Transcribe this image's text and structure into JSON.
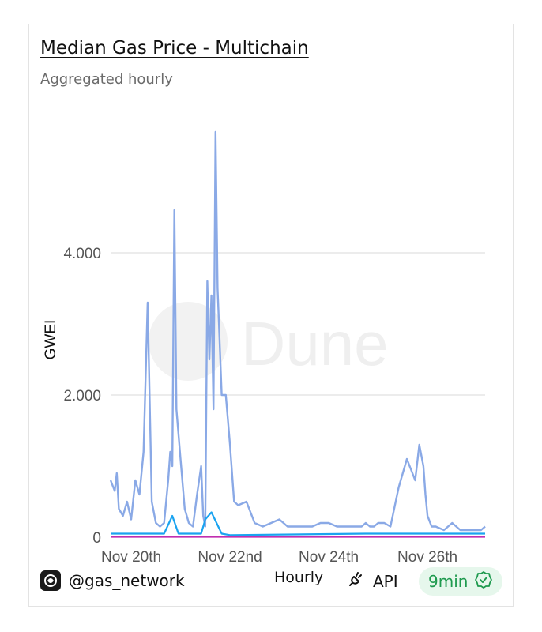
{
  "header": {
    "title": "Median Gas Price - Multichain",
    "subtitle": "Aggregated hourly"
  },
  "watermark": "Dune",
  "footer": {
    "handle": "@gas_network",
    "granularity": "Hourly",
    "api_label": "API",
    "freshness": "9min",
    "logo_icon": "gas-network-logo-icon",
    "api_icon": "plug-icon",
    "badge_icon": "verified-check-icon"
  },
  "colors": {
    "primary_series": "#8aa9e6",
    "accent_series": "#1aa3f0",
    "badge_text": "#1e9a4e",
    "badge_bg": "#e6f7ec"
  },
  "chart_data": {
    "type": "line",
    "ylabel": "GWEI",
    "xlabel": "",
    "ylim": [
      0,
      6000
    ],
    "y_ticks": [
      0,
      2000,
      4000
    ],
    "y_tick_labels": [
      "0",
      "2.000",
      "4.000"
    ],
    "x_range": [
      "2024-11-19T14:00",
      "2024-11-27T04:00"
    ],
    "x_tick_dates": [
      "2024-11-20T00:00",
      "2024-11-22T00:00",
      "2024-11-24T00:00",
      "2024-11-26T00:00"
    ],
    "x_tick_labels": [
      "Nov 20th",
      "Nov 22nd",
      "Nov 24th",
      "Nov 26th"
    ],
    "grid": true,
    "series": [
      {
        "x": [
          "2024-11-19T14:00",
          "2024-11-19T16:00",
          "2024-11-19T17:00",
          "2024-11-19T18:00",
          "2024-11-19T20:00",
          "2024-11-19T22:00",
          "2024-11-20T00:00",
          "2024-11-20T02:00",
          "2024-11-20T04:00",
          "2024-11-20T06:00",
          "2024-11-20T08:00",
          "2024-11-20T10:00",
          "2024-11-20T12:00",
          "2024-11-20T14:00",
          "2024-11-20T16:00",
          "2024-11-20T18:00",
          "2024-11-20T19:00",
          "2024-11-20T20:00",
          "2024-11-20T21:00",
          "2024-11-20T22:00",
          "2024-11-21T00:00",
          "2024-11-21T02:00",
          "2024-11-21T04:00",
          "2024-11-21T06:00",
          "2024-11-21T08:00",
          "2024-11-21T10:00",
          "2024-11-21T11:00",
          "2024-11-21T12:00",
          "2024-11-21T13:00",
          "2024-11-21T14:00",
          "2024-11-21T15:00",
          "2024-11-21T16:00",
          "2024-11-21T17:00",
          "2024-11-21T18:00",
          "2024-11-21T20:00",
          "2024-11-21T22:00",
          "2024-11-22T00:00",
          "2024-11-22T02:00",
          "2024-11-22T04:00",
          "2024-11-22T08:00",
          "2024-11-22T12:00",
          "2024-11-22T16:00",
          "2024-11-22T20:00",
          "2024-11-23T00:00",
          "2024-11-23T04:00",
          "2024-11-23T08:00",
          "2024-11-23T12:00",
          "2024-11-23T16:00",
          "2024-11-23T20:00",
          "2024-11-24T00:00",
          "2024-11-24T04:00",
          "2024-11-24T08:00",
          "2024-11-24T12:00",
          "2024-11-24T16:00",
          "2024-11-24T18:00",
          "2024-11-24T20:00",
          "2024-11-24T22:00",
          "2024-11-25T00:00",
          "2024-11-25T03:00",
          "2024-11-25T06:00",
          "2024-11-25T10:00",
          "2024-11-25T14:00",
          "2024-11-25T18:00",
          "2024-11-25T20:00",
          "2024-11-25T22:00",
          "2024-11-25T23:00",
          "2024-11-26T00:00",
          "2024-11-26T02:00",
          "2024-11-26T04:00",
          "2024-11-26T08:00",
          "2024-11-26T12:00",
          "2024-11-26T16:00",
          "2024-11-26T20:00",
          "2024-11-27T00:00",
          "2024-11-27T02:00",
          "2024-11-27T04:00"
        ],
        "values": [
          800,
          650,
          900,
          400,
          300,
          500,
          250,
          800,
          600,
          1200,
          3300,
          500,
          200,
          150,
          200,
          800,
          1200,
          1000,
          4600,
          1800,
          1100,
          400,
          200,
          150,
          600,
          1000,
          300,
          150,
          3600,
          2500,
          3400,
          1800,
          5700,
          3500,
          2000,
          2000,
          1300,
          500,
          450,
          500,
          200,
          150,
          200,
          250,
          150,
          150,
          150,
          150,
          200,
          200,
          150,
          150,
          150,
          150,
          200,
          150,
          150,
          200,
          200,
          150,
          700,
          1100,
          800,
          1300,
          1000,
          600,
          300,
          150,
          150,
          100,
          200,
          100,
          100,
          100,
          100,
          150
        ]
      },
      {
        "x": [
          "2024-11-19T14:00",
          "2024-11-20T16:00",
          "2024-11-20T20:00",
          "2024-11-20T23:00",
          "2024-11-21T10:00",
          "2024-11-21T12:00",
          "2024-11-21T15:00",
          "2024-11-21T20:00",
          "2024-11-22T00:00",
          "2024-11-24T18:00",
          "2024-11-25T20:00",
          "2024-11-27T04:00"
        ],
        "values": [
          50,
          50,
          300,
          50,
          50,
          250,
          350,
          50,
          30,
          50,
          50,
          50
        ]
      },
      {
        "x": [
          "2024-11-19T14:00",
          "2024-11-27T04:00"
        ],
        "values": [
          5,
          5
        ]
      }
    ]
  }
}
